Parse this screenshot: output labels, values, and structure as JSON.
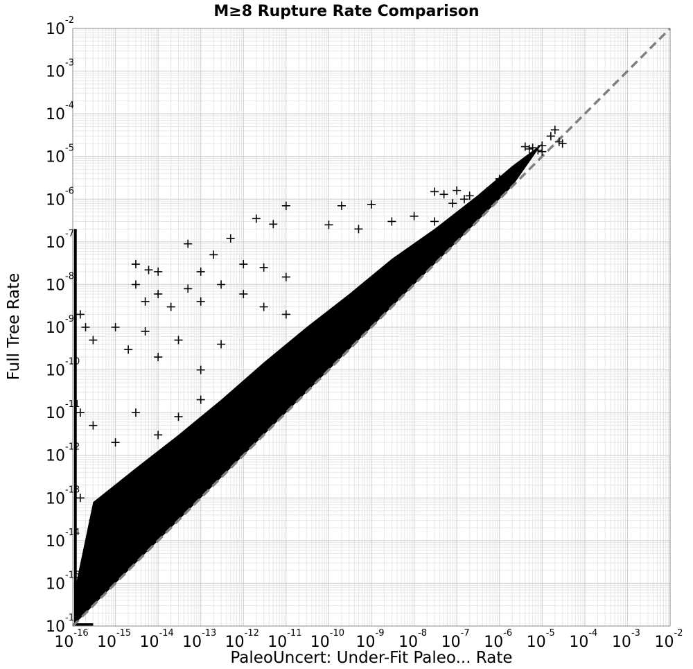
{
  "chart_data": {
    "type": "scatter",
    "title": "M≥8 Rupture Rate Comparison",
    "xlabel": "PaleoUncert: Under-Fit Paleo... Rate",
    "ylabel": "Full Tree Rate",
    "xscale": "log",
    "yscale": "log",
    "xlim": [
      1e-16,
      0.01
    ],
    "ylim": [
      1e-16,
      0.01
    ],
    "grid": true,
    "marker": "+",
    "marker_color": "#000000",
    "reference_line": {
      "style": "dashed",
      "color": "#808080",
      "from": [
        1e-16,
        1e-16
      ],
      "to": [
        0.01,
        0.01
      ]
    },
    "tick_labels": {
      "x": [
        {
          "base": "10",
          "exp": "-16"
        },
        {
          "base": "10",
          "exp": "-15"
        },
        {
          "base": "10",
          "exp": "-14"
        },
        {
          "base": "10",
          "exp": "-13"
        },
        {
          "base": "10",
          "exp": "-12"
        },
        {
          "base": "10",
          "exp": "-11"
        },
        {
          "base": "10",
          "exp": "-10"
        },
        {
          "base": "10",
          "exp": "-9"
        },
        {
          "base": "10",
          "exp": "-8"
        },
        {
          "base": "10",
          "exp": "-7"
        },
        {
          "base": "10",
          "exp": "-6"
        },
        {
          "base": "10",
          "exp": "-5"
        },
        {
          "base": "10",
          "exp": "-4"
        },
        {
          "base": "10",
          "exp": "-3"
        },
        {
          "base": "10",
          "exp": "-2"
        }
      ],
      "y": [
        {
          "base": "10",
          "exp": "-16"
        },
        {
          "base": "10",
          "exp": "-15"
        },
        {
          "base": "10",
          "exp": "-14"
        },
        {
          "base": "10",
          "exp": "-13"
        },
        {
          "base": "10",
          "exp": "-12"
        },
        {
          "base": "10",
          "exp": "-11"
        },
        {
          "base": "10",
          "exp": "-10"
        },
        {
          "base": "10",
          "exp": "-9"
        },
        {
          "base": "10",
          "exp": "-8"
        },
        {
          "base": "10",
          "exp": "-7"
        },
        {
          "base": "10",
          "exp": "-6"
        },
        {
          "base": "10",
          "exp": "-5"
        },
        {
          "base": "10",
          "exp": "-4"
        },
        {
          "base": "10",
          "exp": "-3"
        },
        {
          "base": "10",
          "exp": "-2"
        }
      ]
    },
    "series": [
      {
        "points": [
          [
            4e-06,
            1.7e-05
          ],
          [
            5e-06,
            1.5e-05
          ],
          [
            6e-06,
            1.6e-05
          ],
          [
            8e-06,
            1.4e-05
          ],
          [
            1e-05,
            1.8e-05
          ],
          [
            1.6e-05,
            3e-05
          ],
          [
            2e-05,
            4.2e-05
          ],
          [
            2.5e-05,
            2.2e-05
          ],
          [
            3e-05,
            2e-05
          ],
          [
            1e-05,
            1.3e-05
          ],
          [
            3e-08,
            1.5e-06
          ],
          [
            5e-08,
            1.3e-06
          ],
          [
            1e-07,
            1.6e-06
          ],
          [
            2e-07,
            1.2e-06
          ],
          [
            5e-07,
            1.5e-06
          ],
          [
            1e-06,
            3e-06
          ],
          [
            2e-06,
            4e-06
          ],
          [
            3e-06,
            6e-06
          ],
          [
            1.5e-07,
            1e-06
          ],
          [
            8e-08,
            8e-07
          ],
          [
            1e-11,
            7e-07
          ],
          [
            2e-10,
            7e-07
          ],
          [
            1e-09,
            7.5e-07
          ],
          [
            2e-12,
            3.5e-07
          ],
          [
            5e-12,
            2.6e-07
          ],
          [
            3e-09,
            3e-07
          ],
          [
            1e-10,
            2.5e-07
          ],
          [
            5e-10,
            2e-07
          ],
          [
            1e-08,
            4e-07
          ],
          [
            3e-08,
            3e-07
          ],
          [
            3e-15,
            3e-08
          ],
          [
            6e-15,
            2.2e-08
          ],
          [
            1e-14,
            2e-08
          ],
          [
            5e-14,
            9e-08
          ],
          [
            1e-13,
            2e-08
          ],
          [
            2e-13,
            5e-08
          ],
          [
            5e-13,
            1.2e-07
          ],
          [
            1e-12,
            3e-08
          ],
          [
            3e-12,
            2.5e-08
          ],
          [
            1e-11,
            1.5e-08
          ],
          [
            3e-15,
            1e-08
          ],
          [
            5e-15,
            4e-09
          ],
          [
            1e-14,
            6e-09
          ],
          [
            2e-14,
            3e-09
          ],
          [
            5e-14,
            8e-09
          ],
          [
            1e-13,
            4e-09
          ],
          [
            3e-13,
            1e-08
          ],
          [
            1e-12,
            6e-09
          ],
          [
            3e-12,
            3e-09
          ],
          [
            1e-11,
            2e-09
          ],
          [
            1.5e-16,
            2e-09
          ],
          [
            2e-16,
            1e-09
          ],
          [
            3e-16,
            5e-10
          ],
          [
            1e-15,
            1e-09
          ],
          [
            2e-15,
            3e-10
          ],
          [
            5e-15,
            8e-10
          ],
          [
            1e-14,
            2e-10
          ],
          [
            3e-14,
            5e-10
          ],
          [
            1e-13,
            1e-10
          ],
          [
            3e-13,
            4e-10
          ],
          [
            1.5e-16,
            1e-11
          ],
          [
            3e-16,
            5e-12
          ],
          [
            1e-15,
            2e-12
          ],
          [
            3e-15,
            1e-11
          ],
          [
            1e-14,
            3e-12
          ],
          [
            3e-14,
            8e-12
          ],
          [
            1e-13,
            2e-11
          ],
          [
            5e-13,
            5e-12
          ],
          [
            2e-12,
            1e-11
          ],
          [
            1e-12,
            3e-11
          ],
          [
            1.5e-16,
            1e-13
          ],
          [
            3e-16,
            3e-14
          ],
          [
            1e-15,
            1e-13
          ],
          [
            3e-15,
            4e-14
          ],
          [
            1e-14,
            1e-13
          ],
          [
            3e-14,
            3e-13
          ],
          [
            1e-13,
            5e-13
          ],
          [
            3e-13,
            1e-12
          ],
          [
            1e-12,
            2e-12
          ],
          [
            3e-12,
            6e-12
          ],
          [
            1.5e-16,
            1e-15
          ],
          [
            3e-16,
            5e-16
          ],
          [
            1e-15,
            3e-15
          ],
          [
            3e-15,
            8e-15
          ],
          [
            1e-14,
            3e-14
          ],
          [
            1e-11,
            1e-10
          ],
          [
            3e-11,
            2e-10
          ],
          [
            1e-10,
            5e-10
          ],
          [
            3e-10,
            1e-09
          ],
          [
            1e-09,
            3e-09
          ],
          [
            3e-09,
            8e-09
          ],
          [
            1e-08,
            2e-08
          ],
          [
            3e-08,
            6e-08
          ],
          [
            1e-07,
            2e-07
          ],
          [
            3e-07,
            6e-07
          ]
        ]
      }
    ]
  }
}
